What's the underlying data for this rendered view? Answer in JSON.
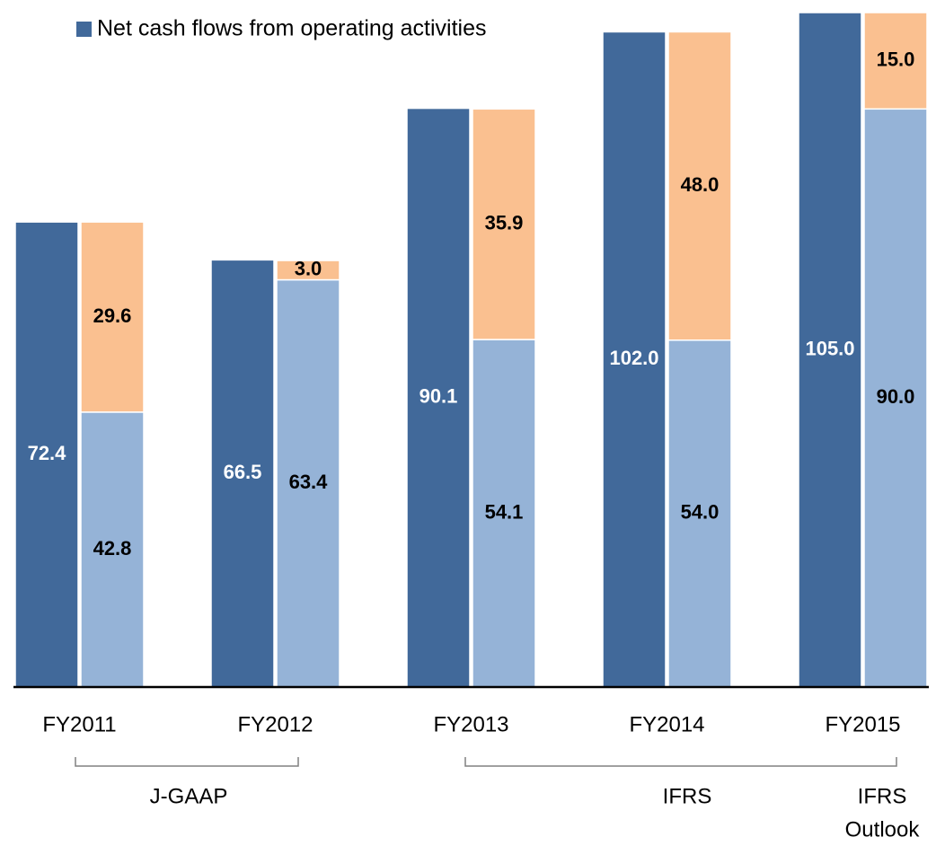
{
  "chart_data": {
    "type": "bar",
    "categories": [
      "FY2011",
      "FY2012",
      "FY2013",
      "FY2014",
      "FY2015"
    ],
    "series": [
      {
        "name": "Net cash flows from operating activities",
        "color": "#41699a",
        "stack": "a",
        "values": [
          72.4,
          66.5,
          90.1,
          102.0,
          105.0
        ],
        "value_labels": [
          "72.4",
          "66.5",
          "90.1",
          "102.0",
          "105.0"
        ]
      },
      {
        "color": "#95b3d7",
        "stack": "b",
        "values": [
          42.8,
          63.4,
          54.1,
          54.0,
          90.0
        ],
        "value_labels": [
          "42.8",
          "63.4",
          "54.1",
          "54.0",
          "90.0"
        ]
      },
      {
        "color": "#fac090",
        "stack": "b",
        "values": [
          29.6,
          3.0,
          35.9,
          48.0,
          15.0
        ],
        "value_labels": [
          "29.6",
          "3.0",
          "35.9",
          "48.0",
          "15.0"
        ]
      }
    ],
    "ylim": [
      0,
      105
    ],
    "annotations": [
      {
        "lines": [
          "J-GAAP"
        ]
      },
      {
        "lines": [
          "IFRS"
        ]
      },
      {
        "lines": [
          "IFRS",
          "Outlook"
        ]
      }
    ]
  }
}
